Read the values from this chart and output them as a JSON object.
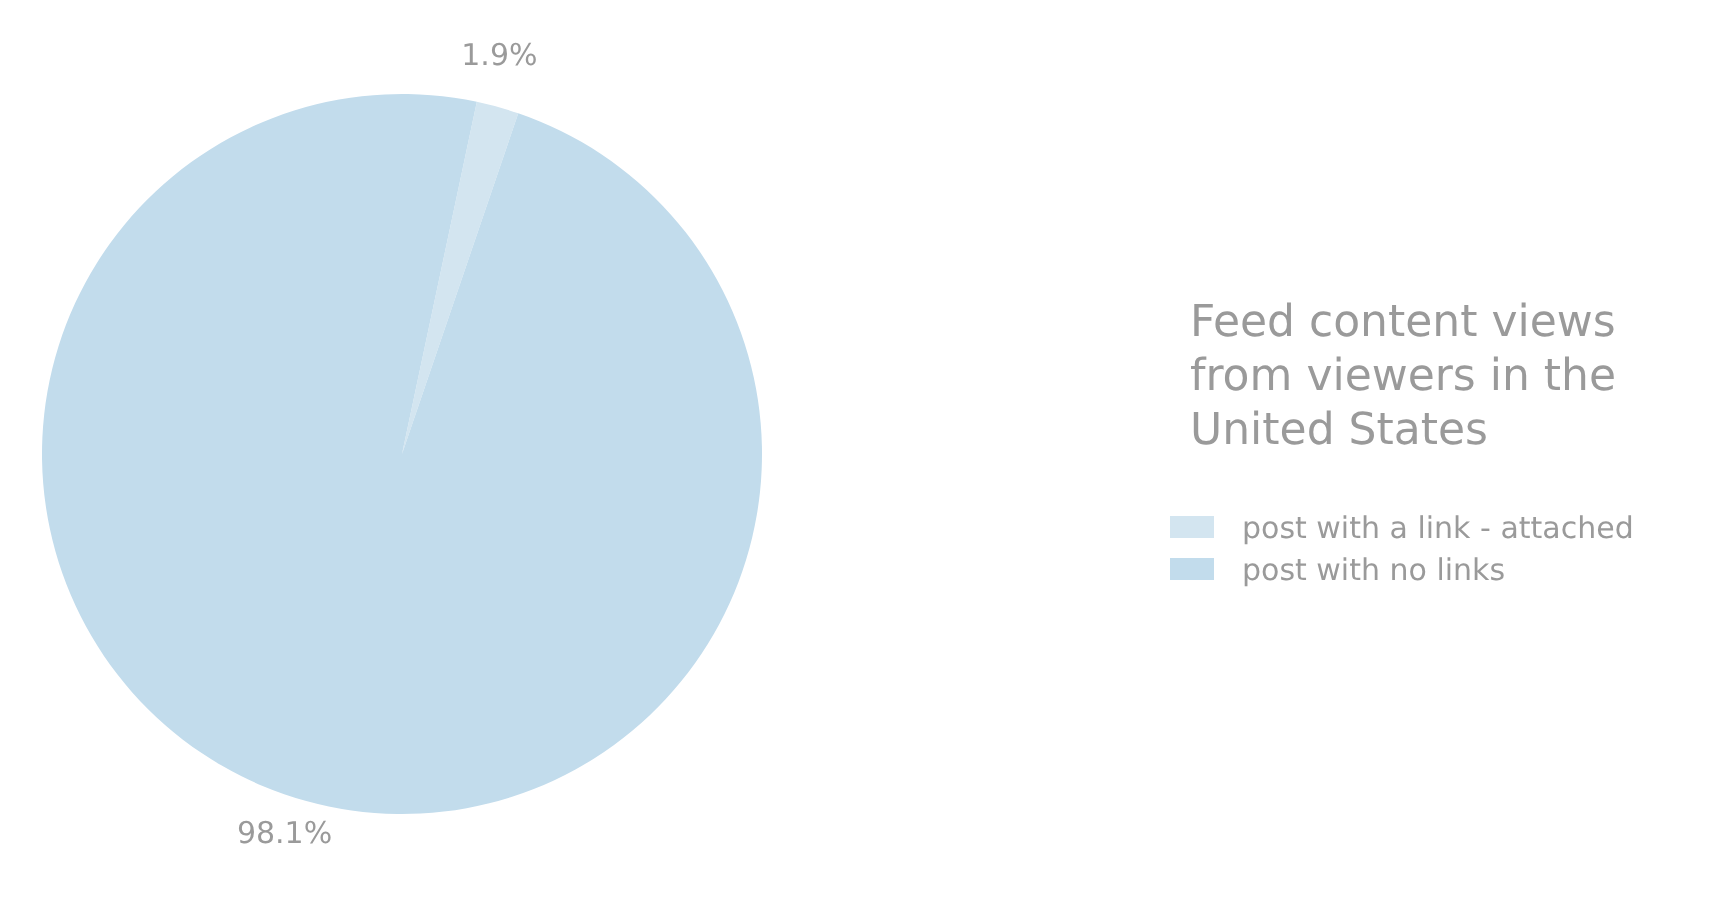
{
  "chart_data": {
    "type": "pie",
    "title": "Feed content views from viewers in the United States",
    "categories": [
      "post with a link - attached",
      "post with no links"
    ],
    "values": [
      1.9,
      98.1
    ],
    "colors": [
      "#d3e5f0",
      "#c2dcec"
    ],
    "value_labels": [
      "1.9%",
      "98.1%"
    ],
    "legend": "right"
  }
}
